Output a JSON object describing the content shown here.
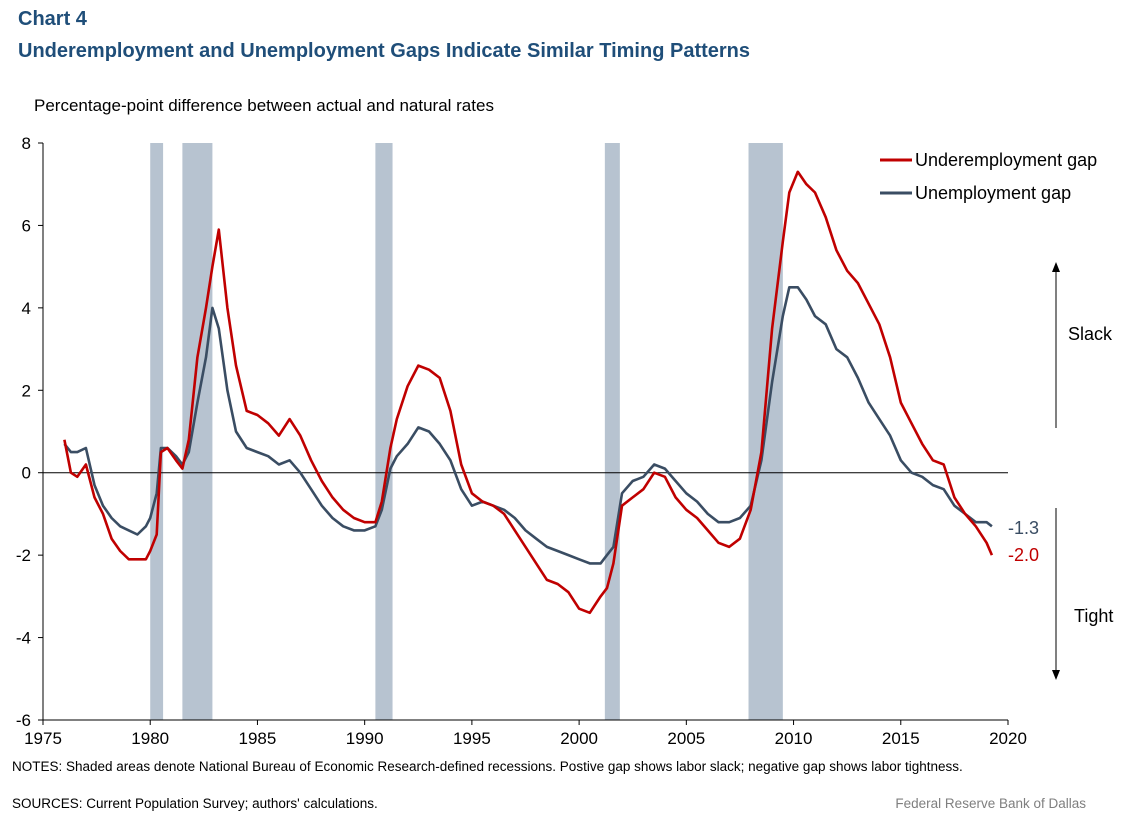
{
  "header": {
    "chart_label": "Chart 4",
    "title": "Underemployment  and Unemployment  Gaps Indicate Similar Timing Patterns",
    "subtitle": "Percentage-point difference between actual and natural rates"
  },
  "footer": {
    "notes": "NOTES:  Shaded areas denote National Bureau of Economic Research-defined recessions. Postive gap shows labor slack; negative gap shows labor tightness.",
    "sources": "SOURCES:  Current Population Survey; authors' calculations.",
    "credit": "Federal Reserve  Bank of Dallas"
  },
  "colors": {
    "underemployment": "#c00000",
    "unemployment": "#3a4d63",
    "recession": "#b7c3d0",
    "axis": "#000000"
  },
  "chart_data": {
    "type": "line",
    "xlim": [
      1975,
      2020
    ],
    "ylim": [
      -6,
      8
    ],
    "x_ticks": [
      1975,
      1980,
      1985,
      1990,
      1995,
      2000,
      2005,
      2010,
      2015,
      2020
    ],
    "y_ticks": [
      -6,
      -4,
      -2,
      0,
      2,
      4,
      6,
      8
    ],
    "grid": false,
    "legend": "top-right",
    "recessions": [
      [
        1980.0,
        1980.6
      ],
      [
        1981.5,
        1982.9
      ],
      [
        1990.5,
        1991.3
      ],
      [
        2001.2,
        2001.9
      ],
      [
        2007.9,
        2009.5
      ]
    ],
    "annotations": {
      "slack": "Slack",
      "tight": "Tight",
      "end_unemployment": "-1.3",
      "end_underemployment": "-2.0"
    },
    "series": [
      {
        "name": "Underemployment gap",
        "x": [
          1976.0,
          1976.3,
          1976.6,
          1977.0,
          1977.4,
          1977.8,
          1978.2,
          1978.6,
          1979.0,
          1979.4,
          1979.8,
          1980.0,
          1980.3,
          1980.5,
          1980.8,
          1981.2,
          1981.5,
          1981.8,
          1982.2,
          1982.6,
          1982.9,
          1983.2,
          1983.6,
          1984.0,
          1984.5,
          1985.0,
          1985.5,
          1986.0,
          1986.5,
          1987.0,
          1987.5,
          1988.0,
          1988.5,
          1989.0,
          1989.5,
          1990.0,
          1990.5,
          1990.8,
          1991.2,
          1991.5,
          1992.0,
          1992.5,
          1993.0,
          1993.5,
          1994.0,
          1994.5,
          1995.0,
          1995.5,
          1996.0,
          1996.5,
          1997.0,
          1997.5,
          1998.0,
          1998.5,
          1999.0,
          1999.5,
          2000.0,
          2000.5,
          2001.0,
          2001.3,
          2001.6,
          2002.0,
          2002.5,
          2003.0,
          2003.5,
          2004.0,
          2004.5,
          2005.0,
          2005.5,
          2006.0,
          2006.5,
          2007.0,
          2007.5,
          2008.0,
          2008.5,
          2009.0,
          2009.5,
          2009.8,
          2010.2,
          2010.6,
          2011.0,
          2011.5,
          2012.0,
          2012.5,
          2013.0,
          2013.5,
          2014.0,
          2014.5,
          2015.0,
          2015.5,
          2016.0,
          2016.5,
          2017.0,
          2017.5,
          2018.0,
          2018.5,
          2019.0,
          2019.25
        ],
        "values": [
          0.8,
          0.0,
          -0.1,
          0.2,
          -0.6,
          -1.0,
          -1.6,
          -1.9,
          -2.1,
          -2.1,
          -2.1,
          -1.9,
          -1.5,
          0.5,
          0.6,
          0.3,
          0.1,
          0.8,
          2.8,
          4.0,
          5.0,
          5.9,
          4.0,
          2.6,
          1.5,
          1.4,
          1.2,
          0.9,
          1.3,
          0.9,
          0.3,
          -0.2,
          -0.6,
          -0.9,
          -1.1,
          -1.2,
          -1.2,
          -0.7,
          0.6,
          1.3,
          2.1,
          2.6,
          2.5,
          2.3,
          1.5,
          0.2,
          -0.5,
          -0.7,
          -0.8,
          -1.0,
          -1.4,
          -1.8,
          -2.2,
          -2.6,
          -2.7,
          -2.9,
          -3.3,
          -3.4,
          -3.0,
          -2.8,
          -2.2,
          -0.8,
          -0.6,
          -0.4,
          0.0,
          -0.1,
          -0.6,
          -0.9,
          -1.1,
          -1.4,
          -1.7,
          -1.8,
          -1.6,
          -0.9,
          0.5,
          3.5,
          5.6,
          6.8,
          7.3,
          7.0,
          6.8,
          6.2,
          5.4,
          4.9,
          4.6,
          4.1,
          3.6,
          2.8,
          1.7,
          1.2,
          0.7,
          0.3,
          0.2,
          -0.6,
          -1.0,
          -1.3,
          -1.7,
          -2.0
        ]
      },
      {
        "name": "Unemployment gap",
        "x": [
          1976.0,
          1976.3,
          1976.6,
          1977.0,
          1977.4,
          1977.8,
          1978.2,
          1978.6,
          1979.0,
          1979.4,
          1979.8,
          1980.0,
          1980.3,
          1980.5,
          1980.8,
          1981.2,
          1981.5,
          1981.8,
          1982.2,
          1982.6,
          1982.9,
          1983.2,
          1983.6,
          1984.0,
          1984.5,
          1985.0,
          1985.5,
          1986.0,
          1986.5,
          1987.0,
          1987.5,
          1988.0,
          1988.5,
          1989.0,
          1989.5,
          1990.0,
          1990.5,
          1990.8,
          1991.2,
          1991.5,
          1992.0,
          1992.5,
          1993.0,
          1993.5,
          1994.0,
          1994.5,
          1995.0,
          1995.5,
          1996.0,
          1996.5,
          1997.0,
          1997.5,
          1998.0,
          1998.5,
          1999.0,
          1999.5,
          2000.0,
          2000.5,
          2001.0,
          2001.3,
          2001.6,
          2002.0,
          2002.5,
          2003.0,
          2003.5,
          2004.0,
          2004.5,
          2005.0,
          2005.5,
          2006.0,
          2006.5,
          2007.0,
          2007.5,
          2008.0,
          2008.5,
          2009.0,
          2009.5,
          2009.8,
          2010.2,
          2010.6,
          2011.0,
          2011.5,
          2012.0,
          2012.5,
          2013.0,
          2013.5,
          2014.0,
          2014.5,
          2015.0,
          2015.5,
          2016.0,
          2016.5,
          2017.0,
          2017.5,
          2018.0,
          2018.5,
          2019.0,
          2019.25
        ],
        "values": [
          0.7,
          0.5,
          0.5,
          0.6,
          -0.3,
          -0.8,
          -1.1,
          -1.3,
          -1.4,
          -1.5,
          -1.3,
          -1.1,
          -0.5,
          0.6,
          0.6,
          0.4,
          0.2,
          0.5,
          1.7,
          2.8,
          4.0,
          3.5,
          2.0,
          1.0,
          0.6,
          0.5,
          0.4,
          0.2,
          0.3,
          0.0,
          -0.4,
          -0.8,
          -1.1,
          -1.3,
          -1.4,
          -1.4,
          -1.3,
          -0.9,
          0.1,
          0.4,
          0.7,
          1.1,
          1.0,
          0.7,
          0.3,
          -0.4,
          -0.8,
          -0.7,
          -0.8,
          -0.9,
          -1.1,
          -1.4,
          -1.6,
          -1.8,
          -1.9,
          -2.0,
          -2.1,
          -2.2,
          -2.2,
          -2.0,
          -1.8,
          -0.5,
          -0.2,
          -0.1,
          0.2,
          0.1,
          -0.2,
          -0.5,
          -0.7,
          -1.0,
          -1.2,
          -1.2,
          -1.1,
          -0.8,
          0.3,
          2.2,
          3.8,
          4.5,
          4.5,
          4.2,
          3.8,
          3.6,
          3.0,
          2.8,
          2.3,
          1.7,
          1.3,
          0.9,
          0.3,
          0.0,
          -0.1,
          -0.3,
          -0.4,
          -0.8,
          -1.0,
          -1.2,
          -1.2,
          -1.3
        ]
      }
    ]
  }
}
